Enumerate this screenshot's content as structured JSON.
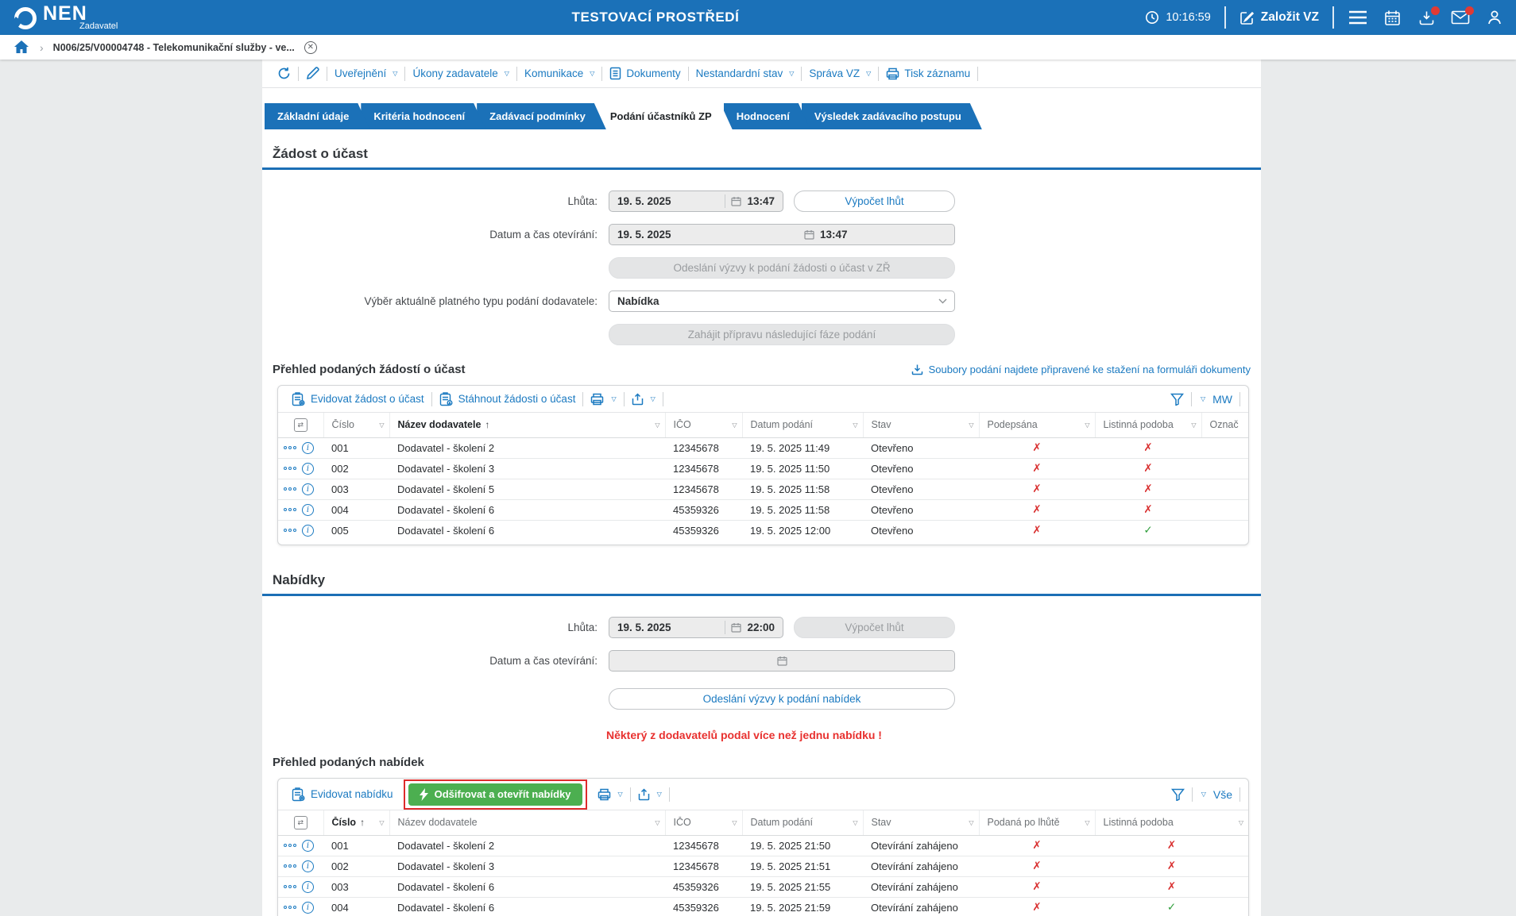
{
  "header": {
    "brand": "NEN",
    "brand_sub": "Zadavatel",
    "env_title": "TESTOVACÍ PROSTŘEDÍ",
    "time": "10:16:59",
    "zalozit_vz": "Založit VZ"
  },
  "breadcrumb": {
    "item": "N006/25/V00004748 - Telekomunikační služby - ve..."
  },
  "record_toolbar": {
    "items": [
      "Uveřejnění",
      "Úkony zadavatele",
      "Komunikace",
      "Dokumenty",
      "Nestandardní stav",
      "Správa VZ",
      "Tisk záznamu"
    ]
  },
  "tabs": [
    "Základní údaje",
    "Kritéria hodnocení",
    "Zadávací podmínky",
    "Podání účastníků ZP",
    "Hodnocení",
    "Výsledek zadávacího postupu"
  ],
  "zadost": {
    "title": "Žádost o účast",
    "lhuta_label": "Lhůta:",
    "lhuta_date": "19. 5. 2025",
    "lhuta_time": "13:47",
    "vypocet_lhut": "Výpočet lhůt",
    "otevirani_label": "Datum a čas otevírání:",
    "otevirani_date": "19. 5. 2025",
    "otevirani_time": "13:47",
    "odeslani_vyzvy": "Odeslání výzvy k podání žádosti o účast v ZŘ",
    "vyber_label": "Výběr aktuálně platného typu podání dodavatele:",
    "vyber_value": "Nabídka",
    "zahajit_fazi": "Zahájit přípravu následující fáze podání",
    "prehled_title": "Přehled podaných žádostí o účast",
    "soubory_link": "Soubory podání najdete připravené ke stažení na formuláři dokumenty",
    "evidovat": "Evidovat žádost o účast",
    "stahnout": "Stáhnout žádosti o účast",
    "filter_view": "MW",
    "table": {
      "columns": [
        "Číslo",
        "Název dodavatele",
        "IČO",
        "Datum podání",
        "Stav",
        "Podepsána",
        "Listinná podoba",
        "Označ"
      ],
      "rows": [
        [
          "001",
          "Dodavatel - školení 2",
          "12345678",
          "19. 5. 2025 11:49",
          "Otevřeno",
          "✗",
          "✗",
          ""
        ],
        [
          "002",
          "Dodavatel - školení 3",
          "12345678",
          "19. 5. 2025 11:50",
          "Otevřeno",
          "✗",
          "✗",
          ""
        ],
        [
          "003",
          "Dodavatel - školení 5",
          "12345678",
          "19. 5. 2025 11:58",
          "Otevřeno",
          "✗",
          "✗",
          ""
        ],
        [
          "004",
          "Dodavatel - školení 6",
          "45359326",
          "19. 5. 2025 11:58",
          "Otevřeno",
          "✗",
          "✗",
          ""
        ],
        [
          "005",
          "Dodavatel - školení 6",
          "45359326",
          "19. 5. 2025 12:00",
          "Otevřeno",
          "✗",
          "✓",
          ""
        ]
      ]
    }
  },
  "nabidky": {
    "title": "Nabídky",
    "lhuta_label": "Lhůta:",
    "lhuta_date": "19. 5. 2025",
    "lhuta_time": "22:00",
    "vypocet_lhut": "Výpočet lhůt",
    "otevirani_label": "Datum a čas otevírání:",
    "odeslani_vyzvy": "Odeslání výzvy k podání nabídek",
    "warning": "Některý z dodavatelů podal více než jednu nabídku !",
    "prehled_title": "Přehled podaných nabídek",
    "evidovat": "Evidovat nabídku",
    "odsifrovat": "Odšifrovat a otevřít nabídky",
    "filter_view": "Vše",
    "table": {
      "columns": [
        "Číslo",
        "Název dodavatele",
        "IČO",
        "Datum podání",
        "Stav",
        "Podaná po lhůtě",
        "Listinná podoba"
      ],
      "rows": [
        [
          "001",
          "Dodavatel - školení 2",
          "12345678",
          "19. 5. 2025 21:50",
          "Otevírání zahájeno",
          "✗",
          "✗"
        ],
        [
          "002",
          "Dodavatel - školení 3",
          "12345678",
          "19. 5. 2025 21:51",
          "Otevírání zahájeno",
          "✗",
          "✗"
        ],
        [
          "003",
          "Dodavatel - školení 6",
          "45359326",
          "19. 5. 2025 21:55",
          "Otevírání zahájeno",
          "✗",
          "✗"
        ],
        [
          "004",
          "Dodavatel - školení 6",
          "45359326",
          "19. 5. 2025 21:59",
          "Otevírání zahájeno",
          "✗",
          "✓"
        ]
      ]
    }
  },
  "colors": {
    "header_blue": "#1b71b8",
    "accent_blue": "#1b7ac1",
    "green_button": "#4caf50",
    "highlight_red": "#dd2b2b",
    "warning_red": "#e8312f",
    "mark_red": "#d93030",
    "mark_green": "#2e9e3a"
  }
}
